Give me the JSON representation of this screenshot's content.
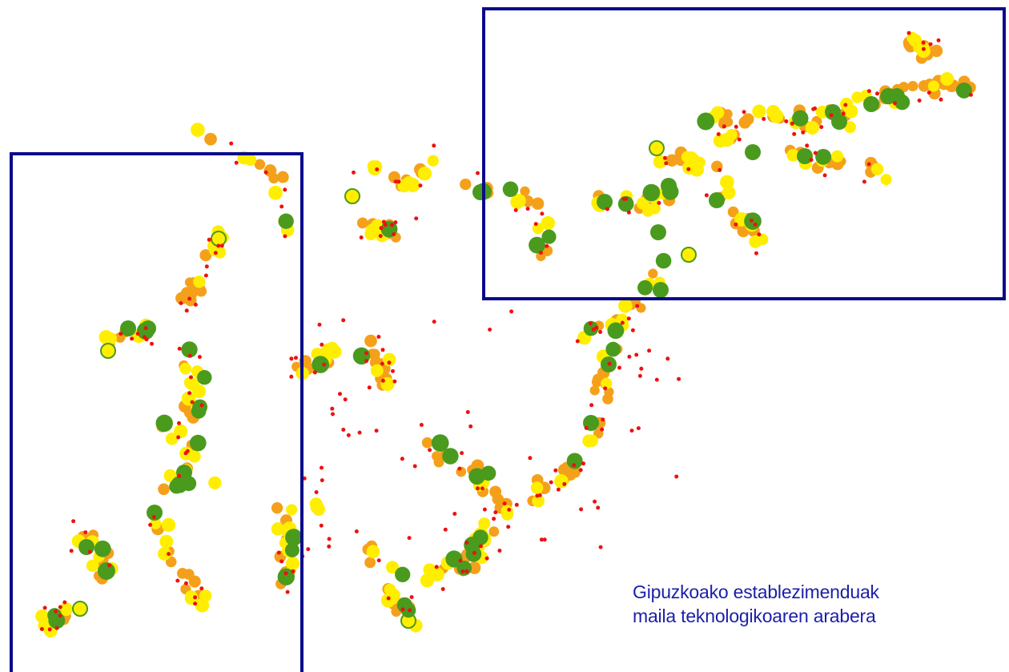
{
  "caption": {
    "line1": "Gipuzkoako establezimenduak",
    "line2": "maila teknologikoaren arabera"
  },
  "colors": {
    "highlight_box": "#0a0a8c",
    "caption_text": "#1a1fa8",
    "high_tech": "#4a9a1e",
    "medium_high_tech": "#ffee00",
    "medium_low_tech": "#f5a01a",
    "low_tech": "#ee1111"
  }
}
